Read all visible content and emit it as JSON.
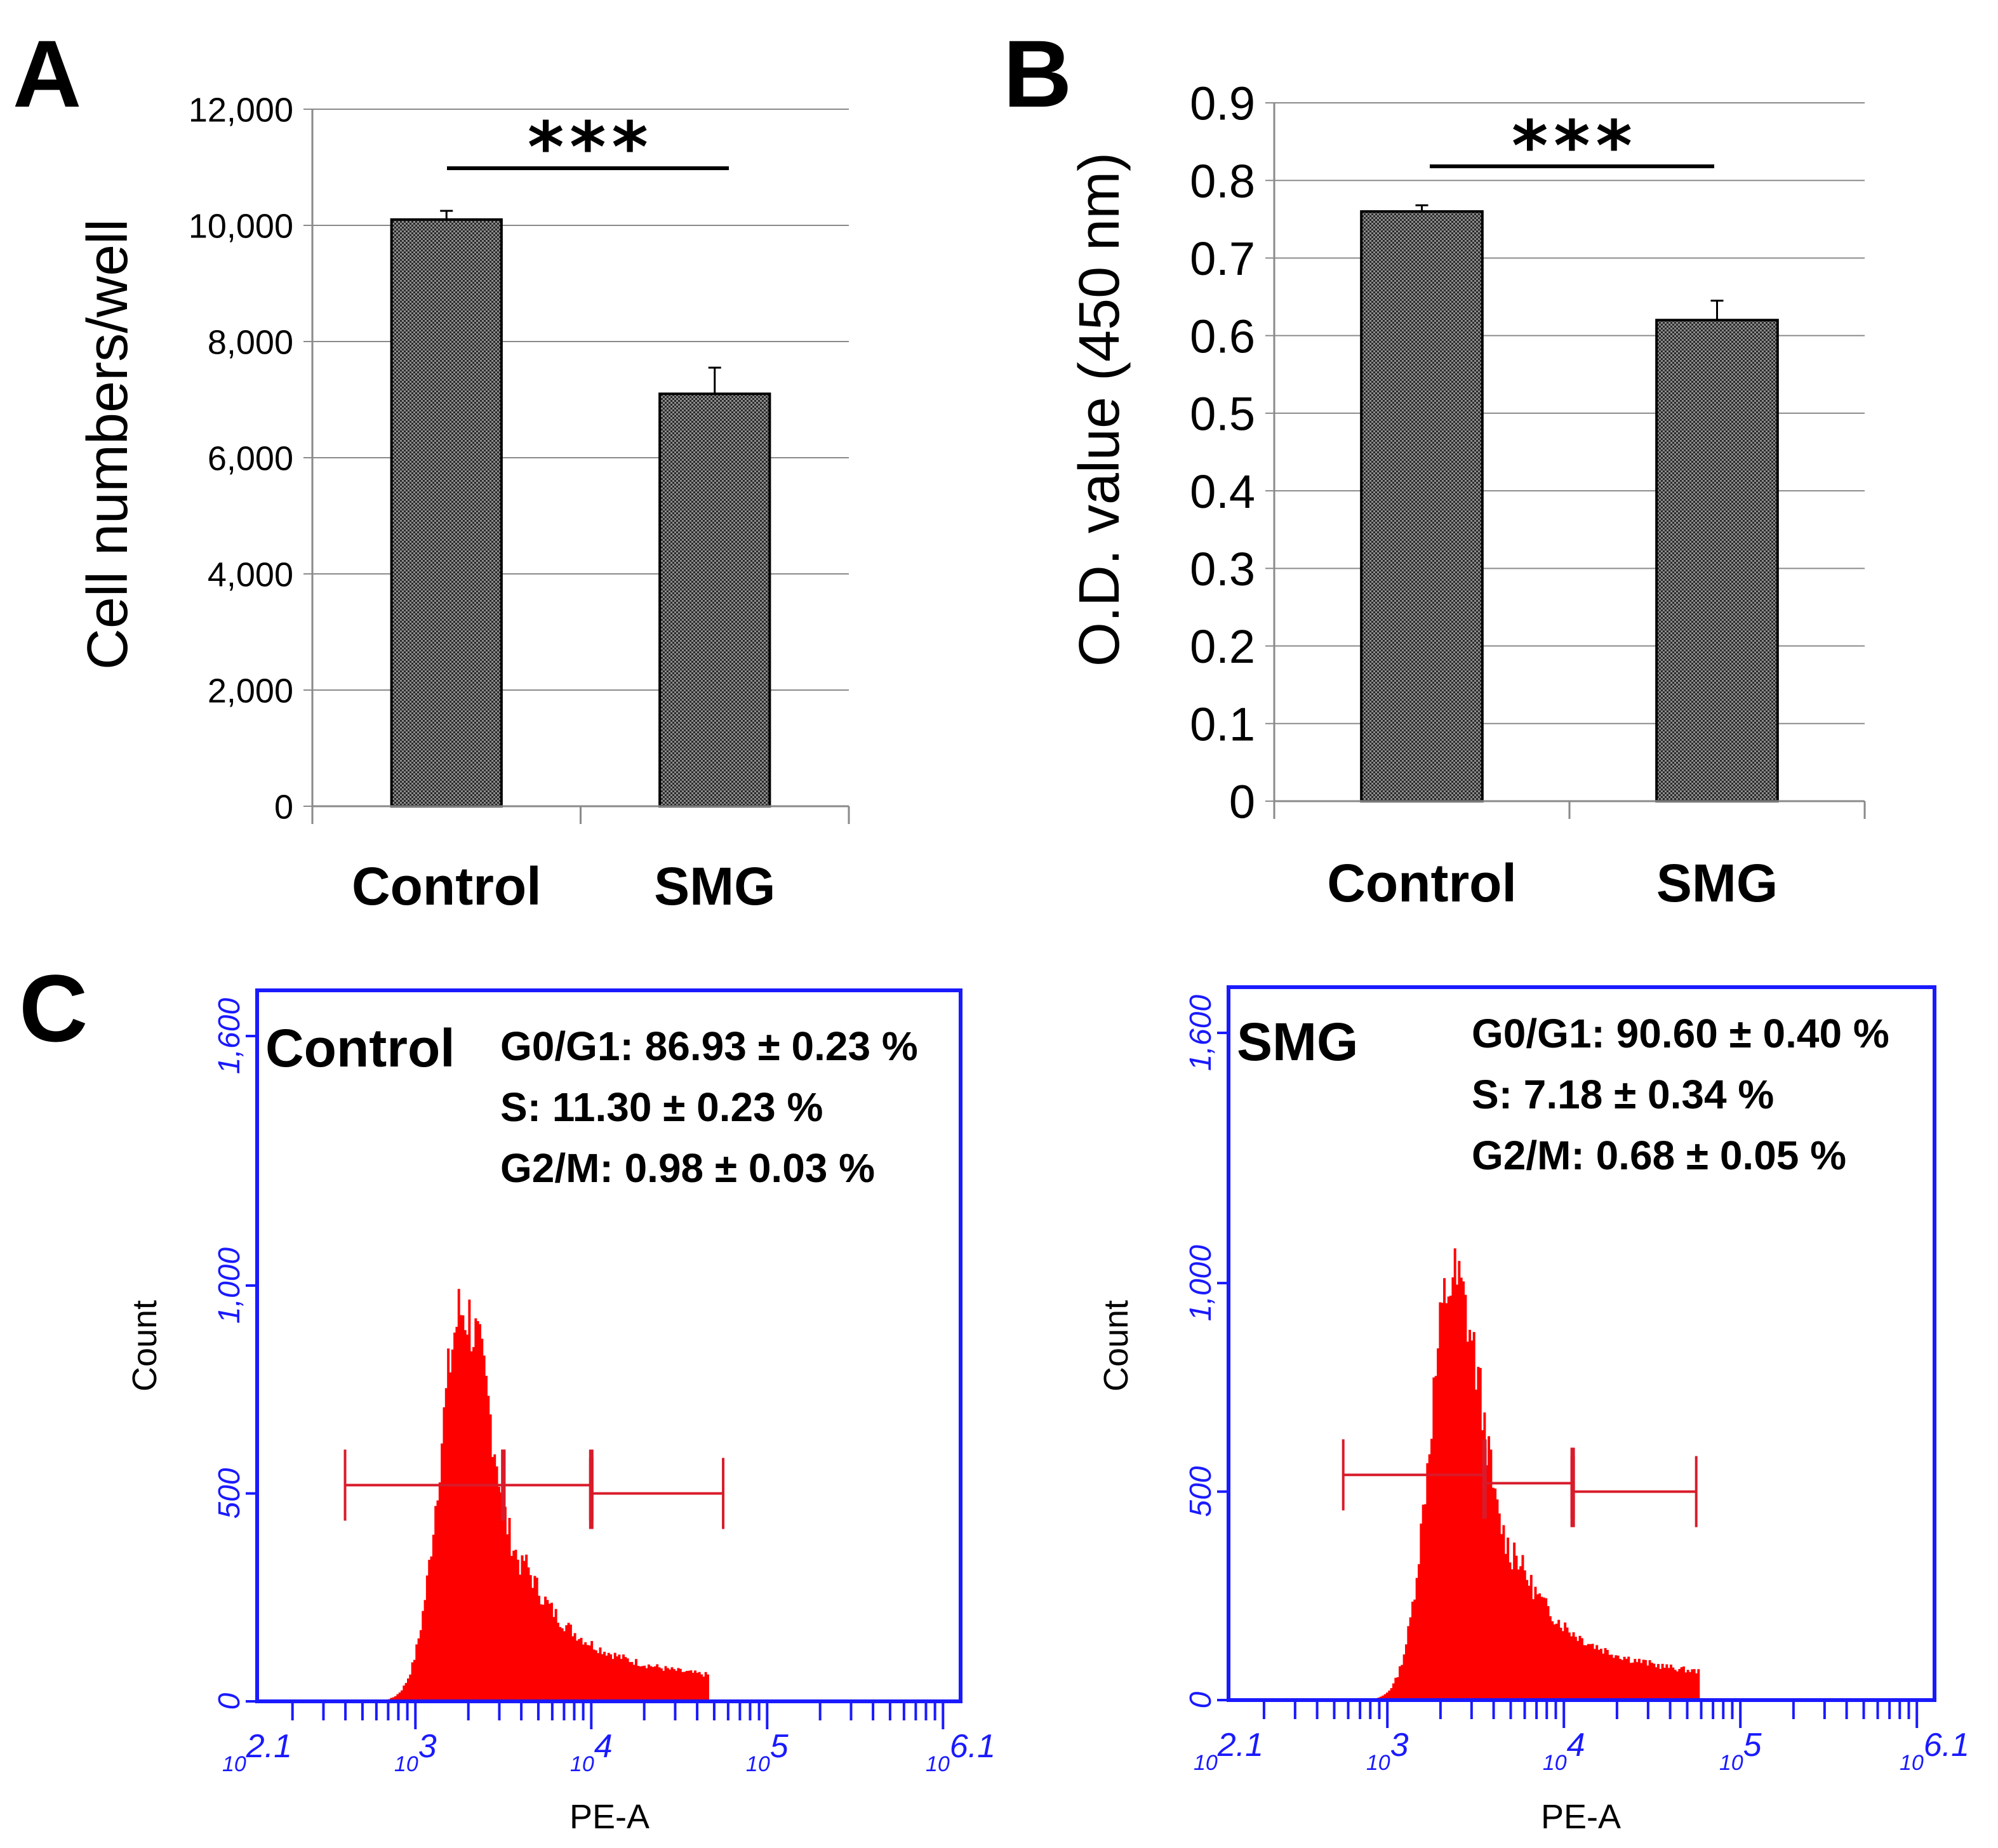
{
  "figure": {
    "panels": {
      "A": {
        "label": "A"
      },
      "B": {
        "label": "B"
      },
      "C": {
        "label": "C"
      }
    }
  },
  "chart_data": [
    {
      "id": "A",
      "type": "bar",
      "categories": [
        "Control",
        "SMG"
      ],
      "values": [
        10100,
        7100
      ],
      "errors": [
        150,
        450
      ],
      "ylabel": "Cell numbers/well",
      "ylim": [
        0,
        12000
      ],
      "yticks": [
        0,
        2000,
        4000,
        6000,
        8000,
        10000,
        12000
      ],
      "ytick_labels": [
        "0",
        "2,000",
        "4,000",
        "6,000",
        "8,000",
        "10,000",
        "12,000"
      ],
      "grid": true,
      "significance": "***"
    },
    {
      "id": "B",
      "type": "bar",
      "categories": [
        "Control",
        "SMG"
      ],
      "values": [
        0.76,
        0.62
      ],
      "errors": [
        0.008,
        0.025
      ],
      "ylabel": "O.D. value (450 nm)",
      "ylim": [
        0,
        0.9
      ],
      "yticks": [
        0,
        0.1,
        0.2,
        0.3,
        0.4,
        0.5,
        0.6,
        0.7,
        0.8,
        0.9
      ],
      "ytick_labels": [
        "0",
        "0.1",
        "0.2",
        "0.3",
        "0.4",
        "0.5",
        "0.6",
        "0.7",
        "0.8",
        "0.9"
      ],
      "grid": true,
      "significance": "***"
    },
    {
      "id": "C1",
      "type": "histogram",
      "title": "Control",
      "xlabel": "PE-A",
      "ylabel": "Count",
      "xscale": "log",
      "xlim_log10": [
        2.1,
        6.1
      ],
      "ylim": [
        0,
        1600
      ],
      "yticks": [
        0,
        500,
        1000,
        1600
      ],
      "ytick_labels": [
        "0",
        "500",
        "1,000",
        "1,600"
      ],
      "xtick_labels": [
        "10^2.1",
        "10^3",
        "10^4",
        "10^5",
        "10^6.1"
      ],
      "peak_log10": 3.26,
      "peak_count": 940,
      "annotations": [
        "G0/G1: 86.93 ± 0.23 %",
        "S: 11.30 ± 0.23 %",
        "G2/M: 0.98 ± 0.03 %"
      ],
      "gates_log10": [
        [
          2.6,
          3.5,
          520
        ],
        [
          3.5,
          4.0,
          520
        ],
        [
          4.0,
          4.75,
          500
        ]
      ]
    },
    {
      "id": "C2",
      "type": "histogram",
      "title": "SMG",
      "xlabel": "PE-A",
      "ylabel": "Count",
      "xscale": "log",
      "xlim_log10": [
        2.1,
        6.1
      ],
      "ylim": [
        0,
        1600
      ],
      "yticks": [
        0,
        500,
        1000,
        1600
      ],
      "ytick_labels": [
        "0",
        "500",
        "1,000",
        "1,600"
      ],
      "xtick_labels": [
        "10^2.1",
        "10^3",
        "10^4",
        "10^5",
        "10^6.1"
      ],
      "peak_log10": 3.36,
      "peak_count": 1010,
      "annotations": [
        "G0/G1: 90.60 ± 0.40 %",
        "S: 7.18 ± 0.34 %",
        "G2/M: 0.68 ± 0.05 %"
      ],
      "gates_log10": [
        [
          2.75,
          3.55,
          540
        ],
        [
          3.55,
          4.05,
          520
        ],
        [
          4.05,
          4.75,
          500
        ]
      ]
    }
  ],
  "colors": {
    "bar_fill": "#444444",
    "grid": "#8a8a8a",
    "axis": "#8a8a8a",
    "flow_axis": "#1a1aff",
    "histogram": "#ff0000",
    "gate": "#d81b2a",
    "text": "#000000"
  }
}
